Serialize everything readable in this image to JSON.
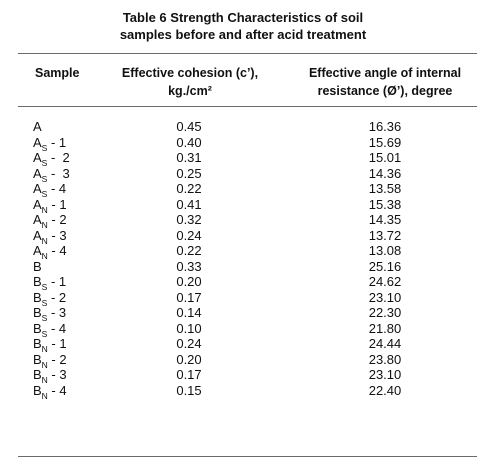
{
  "title_line1": "Table 6 Strength Characteristics of soil",
  "title_line2": "samples before and after acid treatment",
  "headers": {
    "sample": "Sample",
    "cohesion_line1": "Effective cohesion (c’),",
    "cohesion_line2": "kg./cm²",
    "angle_line1": "Effective angle of internal",
    "angle_line2": "resistance (Ø’), degree"
  },
  "rows": [
    {
      "base": "A",
      "sub": "",
      "suffix": "",
      "cohesion": "0.45",
      "angle": "16.36"
    },
    {
      "base": "A",
      "sub": "S",
      "suffix": " - 1",
      "cohesion": "0.40",
      "angle": "15.69"
    },
    {
      "base": "A",
      "sub": "S",
      "suffix": " -  2",
      "cohesion": "0.31",
      "angle": "15.01"
    },
    {
      "base": "A",
      "sub": "S",
      "suffix": " -  3",
      "cohesion": "0.25",
      "angle": "14.36"
    },
    {
      "base": "A",
      "sub": "S",
      "suffix": " - 4",
      "cohesion": "0.22",
      "angle": "13.58"
    },
    {
      "base": "A",
      "sub": "N",
      "suffix": " - 1",
      "cohesion": "0.41",
      "angle": "15.38"
    },
    {
      "base": "A",
      "sub": "N",
      "suffix": " - 2",
      "cohesion": "0.32",
      "angle": "14.35"
    },
    {
      "base": "A",
      "sub": "N",
      "suffix": " - 3",
      "cohesion": "0.24",
      "angle": "13.72"
    },
    {
      "base": "A",
      "sub": "N",
      "suffix": " - 4",
      "cohesion": "0.22",
      "angle": "13.08"
    },
    {
      "base": "B",
      "sub": "",
      "suffix": "",
      "cohesion": "0.33",
      "angle": "25.16"
    },
    {
      "base": "B",
      "sub": "S",
      "suffix": " - 1",
      "cohesion": "0.20",
      "angle": "24.62"
    },
    {
      "base": "B",
      "sub": "S",
      "suffix": " - 2",
      "cohesion": "0.17",
      "angle": "23.10"
    },
    {
      "base": "B",
      "sub": "S",
      "suffix": " - 3",
      "cohesion": "0.14",
      "angle": "22.30"
    },
    {
      "base": "B",
      "sub": "S",
      "suffix": " - 4",
      "cohesion": "0.10",
      "angle": "21.80"
    },
    {
      "base": "B",
      "sub": "N",
      "suffix": " - 1",
      "cohesion": "0.24",
      "angle": "24.44"
    },
    {
      "base": "B",
      "sub": "N",
      "suffix": " - 2",
      "cohesion": "0.20",
      "angle": "23.80"
    },
    {
      "base": "B",
      "sub": "N",
      "suffix": " - 3",
      "cohesion": "0.17",
      "angle": "23.10"
    },
    {
      "base": "B",
      "sub": "N",
      "suffix": " - 4",
      "cohesion": "0.15",
      "angle": "22.40"
    }
  ]
}
